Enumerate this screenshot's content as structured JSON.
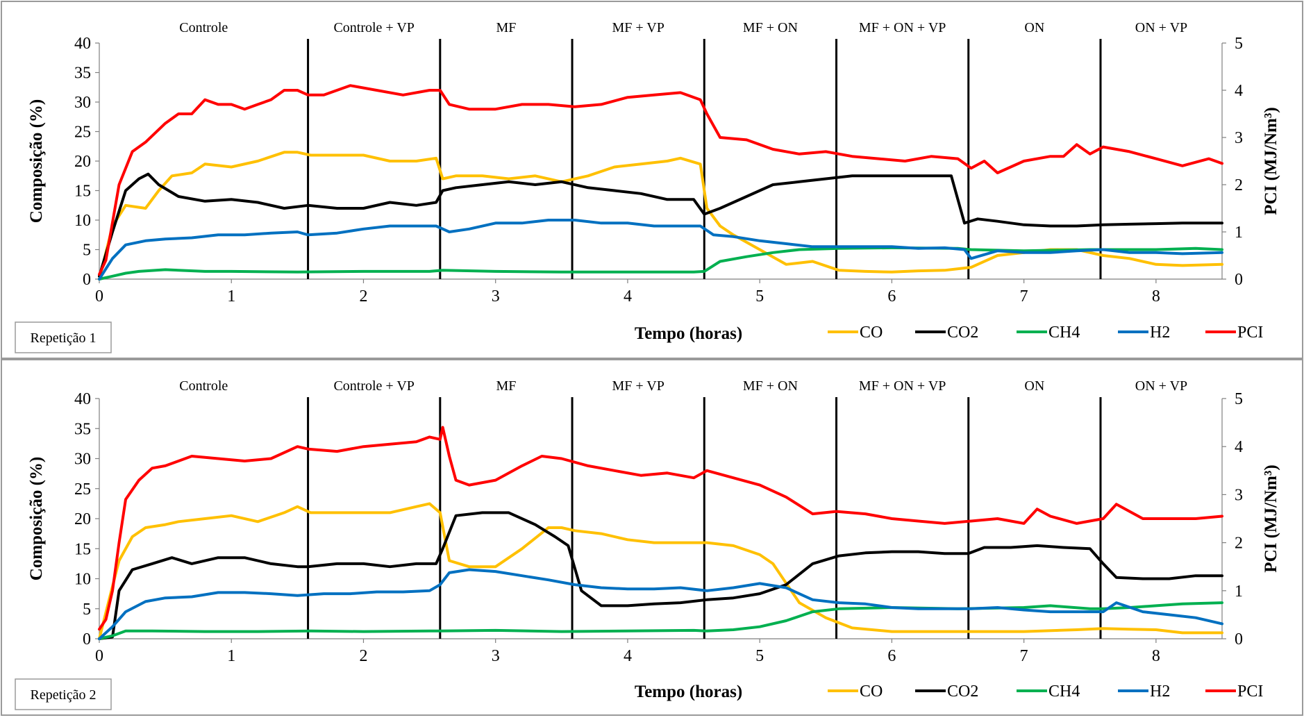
{
  "chart_data": [
    {
      "type": "line",
      "panel_label": "Repetição 1",
      "xlabel": "Tempo (horas)",
      "ylabel": "Composição (%)",
      "y2label": "PCI (MJ/Nm³)",
      "xlim": [
        0,
        8.5
      ],
      "ylim": [
        0,
        40
      ],
      "y2lim": [
        0,
        5
      ],
      "x_ticks": [
        0,
        1,
        2,
        3,
        4,
        5,
        6,
        7,
        8
      ],
      "y_ticks": [
        0,
        5,
        10,
        15,
        20,
        25,
        30,
        35,
        40
      ],
      "y2_ticks": [
        0,
        1,
        2,
        3,
        4,
        5
      ],
      "grid": false,
      "legend_position": "bottom-right",
      "phase_boundaries": [
        1.58,
        2.58,
        3.58,
        4.58,
        5.58,
        6.58,
        7.58
      ],
      "phases": [
        "Controle",
        "Controle + VP",
        "MF",
        "MF + VP",
        "MF + ON",
        "MF + ON + VP",
        "ON",
        "ON + VP"
      ],
      "series": [
        {
          "name": "CO",
          "axis": "left",
          "color": "#FFC000",
          "x": [
            0,
            0.1,
            0.2,
            0.35,
            0.45,
            0.55,
            0.7,
            0.8,
            1.0,
            1.2,
            1.4,
            1.5,
            1.6,
            1.8,
            2.0,
            2.2,
            2.4,
            2.55,
            2.6,
            2.7,
            2.9,
            3.1,
            3.3,
            3.5,
            3.7,
            3.9,
            4.1,
            4.3,
            4.4,
            4.55,
            4.6,
            4.7,
            4.8,
            5.0,
            5.2,
            5.4,
            5.6,
            5.8,
            6.0,
            6.2,
            6.4,
            6.6,
            6.8,
            7.0,
            7.2,
            7.4,
            7.6,
            7.8,
            8.0,
            8.2,
            8.5
          ],
          "values": [
            0,
            9,
            12.5,
            12,
            15,
            17.5,
            18,
            19.5,
            19,
            20,
            21.5,
            21.5,
            21,
            21,
            21,
            20,
            20,
            20.5,
            17,
            17.5,
            17.5,
            17,
            17.5,
            16.5,
            17.5,
            19,
            19.5,
            20,
            20.5,
            19.5,
            12,
            9,
            7.5,
            5,
            2.5,
            3,
            1.5,
            1.3,
            1.2,
            1.4,
            1.5,
            2,
            4,
            4.5,
            5,
            5,
            4,
            3.5,
            2.5,
            2.3,
            2.5
          ]
        },
        {
          "name": "CO2",
          "axis": "left",
          "color": "#000000",
          "x": [
            0,
            0.1,
            0.2,
            0.3,
            0.37,
            0.45,
            0.6,
            0.8,
            1.0,
            1.2,
            1.4,
            1.58,
            1.8,
            2.0,
            2.2,
            2.4,
            2.55,
            2.6,
            2.7,
            2.9,
            3.1,
            3.3,
            3.5,
            3.7,
            3.9,
            4.1,
            4.3,
            4.5,
            4.58,
            4.7,
            4.9,
            5.1,
            5.3,
            5.5,
            5.7,
            5.9,
            6.1,
            6.3,
            6.45,
            6.55,
            6.65,
            6.8,
            7.0,
            7.2,
            7.4,
            7.6,
            7.8,
            8.0,
            8.2,
            8.5
          ],
          "values": [
            0.5,
            8,
            15,
            17,
            17.8,
            16,
            14,
            13.2,
            13.5,
            13,
            12,
            12.5,
            12,
            12,
            13,
            12.5,
            13,
            15,
            15.5,
            16,
            16.5,
            16,
            16.5,
            15.5,
            15,
            14.5,
            13.5,
            13.5,
            11,
            12,
            14,
            16,
            16.5,
            17,
            17.5,
            17.5,
            17.5,
            17.5,
            17.5,
            9.5,
            10.2,
            9.8,
            9.2,
            9,
            9,
            9.2,
            9.3,
            9.4,
            9.5,
            9.5
          ]
        },
        {
          "name": "CH4",
          "axis": "left",
          "color": "#00B050",
          "x": [
            0,
            0.1,
            0.2,
            0.3,
            0.5,
            0.8,
            1.0,
            1.5,
            2.0,
            2.5,
            2.6,
            3.0,
            3.5,
            4.0,
            4.5,
            4.58,
            4.7,
            4.9,
            5.1,
            5.3,
            5.6,
            6.0,
            6.5,
            6.6,
            7.0,
            7.5,
            8.0,
            8.3,
            8.5
          ],
          "values": [
            0,
            0.5,
            1.0,
            1.3,
            1.6,
            1.3,
            1.3,
            1.2,
            1.3,
            1.3,
            1.5,
            1.3,
            1.2,
            1.2,
            1.2,
            1.3,
            3.0,
            3.8,
            4.5,
            5.0,
            5.2,
            5.3,
            5.2,
            5.0,
            4.8,
            5.0,
            5.0,
            5.2,
            5.0
          ]
        },
        {
          "name": "H2",
          "axis": "left",
          "color": "#0070C0",
          "x": [
            0,
            0.1,
            0.2,
            0.35,
            0.5,
            0.7,
            0.9,
            1.1,
            1.3,
            1.5,
            1.58,
            1.8,
            2.0,
            2.2,
            2.4,
            2.55,
            2.65,
            2.8,
            3.0,
            3.2,
            3.4,
            3.6,
            3.8,
            4.0,
            4.2,
            4.4,
            4.55,
            4.65,
            4.8,
            5.0,
            5.2,
            5.4,
            5.6,
            5.8,
            6.0,
            6.2,
            6.4,
            6.55,
            6.6,
            6.8,
            7.0,
            7.2,
            7.4,
            7.6,
            7.8,
            8.0,
            8.2,
            8.5
          ],
          "values": [
            0,
            3.5,
            5.8,
            6.5,
            6.8,
            7,
            7.5,
            7.5,
            7.8,
            8,
            7.5,
            7.8,
            8.5,
            9,
            9,
            9,
            8,
            8.5,
            9.5,
            9.5,
            10,
            10,
            9.5,
            9.5,
            9,
            9,
            9,
            7.5,
            7.2,
            6.5,
            6,
            5.5,
            5.5,
            5.5,
            5.5,
            5.2,
            5.3,
            5,
            3.5,
            4.8,
            4.5,
            4.5,
            4.8,
            5,
            4.5,
            4.5,
            4.3,
            4.5
          ]
        },
        {
          "name": "PCI",
          "axis": "right",
          "color": "#FF0000",
          "x": [
            0,
            0.05,
            0.15,
            0.25,
            0.35,
            0.5,
            0.6,
            0.7,
            0.8,
            0.9,
            1.0,
            1.1,
            1.2,
            1.3,
            1.4,
            1.5,
            1.58,
            1.7,
            1.9,
            2.1,
            2.3,
            2.5,
            2.58,
            2.65,
            2.8,
            3.0,
            3.2,
            3.4,
            3.6,
            3.8,
            4.0,
            4.2,
            4.4,
            4.55,
            4.6,
            4.7,
            4.9,
            5.1,
            5.3,
            5.5,
            5.7,
            5.9,
            6.1,
            6.3,
            6.5,
            6.6,
            6.7,
            6.8,
            7.0,
            7.2,
            7.3,
            7.4,
            7.5,
            7.6,
            7.8,
            8.0,
            8.2,
            8.4,
            8.5
          ],
          "values": [
            0.1,
            0.4,
            2.0,
            2.7,
            2.9,
            3.3,
            3.5,
            3.5,
            3.8,
            3.7,
            3.7,
            3.6,
            3.7,
            3.8,
            4.0,
            4.0,
            3.9,
            3.9,
            4.1,
            4.0,
            3.9,
            4.0,
            4.0,
            3.7,
            3.6,
            3.6,
            3.7,
            3.7,
            3.65,
            3.7,
            3.85,
            3.9,
            3.95,
            3.8,
            3.5,
            3.0,
            2.95,
            2.75,
            2.65,
            2.7,
            2.6,
            2.55,
            2.5,
            2.6,
            2.55,
            2.35,
            2.5,
            2.25,
            2.5,
            2.6,
            2.6,
            2.85,
            2.65,
            2.8,
            2.7,
            2.55,
            2.4,
            2.55,
            2.45
          ]
        }
      ]
    },
    {
      "type": "line",
      "panel_label": "Repetição 2",
      "xlabel": "Tempo (horas)",
      "ylabel": "Composição (%)",
      "y2label": "PCI (MJ/Nm³)",
      "xlim": [
        0,
        8.5
      ],
      "ylim": [
        0,
        40
      ],
      "y2lim": [
        0,
        5
      ],
      "x_ticks": [
        0,
        1,
        2,
        3,
        4,
        5,
        6,
        7,
        8
      ],
      "y_ticks": [
        0,
        5,
        10,
        15,
        20,
        25,
        30,
        35,
        40
      ],
      "y2_ticks": [
        0,
        1,
        2,
        3,
        4,
        5
      ],
      "grid": false,
      "legend_position": "bottom-right",
      "phase_boundaries": [
        1.58,
        2.58,
        3.58,
        4.58,
        5.58,
        6.58,
        7.58
      ],
      "phases": [
        "Controle",
        "Controle + VP",
        "MF",
        "MF + VP",
        "MF + ON",
        "MF + ON + VP",
        "ON",
        "ON + VP"
      ],
      "series": [
        {
          "name": "CO",
          "axis": "left",
          "color": "#FFC000",
          "x": [
            0,
            0.08,
            0.15,
            0.25,
            0.35,
            0.5,
            0.6,
            0.8,
            1.0,
            1.2,
            1.4,
            1.5,
            1.6,
            1.8,
            2.0,
            2.2,
            2.4,
            2.5,
            2.58,
            2.65,
            2.8,
            3.0,
            3.2,
            3.4,
            3.5,
            3.6,
            3.8,
            4.0,
            4.2,
            4.4,
            4.6,
            4.8,
            5.0,
            5.1,
            5.3,
            5.5,
            5.7,
            6.0,
            6.3,
            6.6,
            7.0,
            7.4,
            7.6,
            7.8,
            8.0,
            8.2,
            8.5
          ],
          "values": [
            0,
            7,
            13,
            17,
            18.5,
            19,
            19.5,
            20,
            20.5,
            19.5,
            21,
            22,
            21,
            21,
            21,
            21,
            22,
            22.5,
            21,
            13,
            12,
            12,
            15,
            18.5,
            18.5,
            18,
            17.5,
            16.5,
            16,
            16,
            16,
            15.5,
            14,
            12.5,
            6,
            3.5,
            1.8,
            1.2,
            1.2,
            1.2,
            1.2,
            1.5,
            1.7,
            1.6,
            1.5,
            1.0,
            1.0
          ]
        },
        {
          "name": "CO2",
          "axis": "left",
          "color": "#000000",
          "x": [
            0,
            0.1,
            0.15,
            0.25,
            0.4,
            0.55,
            0.7,
            0.9,
            1.1,
            1.3,
            1.5,
            1.58,
            1.8,
            2.0,
            2.2,
            2.4,
            2.55,
            2.6,
            2.7,
            2.9,
            3.1,
            3.3,
            3.45,
            3.55,
            3.65,
            3.8,
            4.0,
            4.2,
            4.4,
            4.6,
            4.8,
            5.0,
            5.2,
            5.4,
            5.6,
            5.8,
            6.0,
            6.2,
            6.4,
            6.58,
            6.7,
            6.9,
            7.1,
            7.3,
            7.5,
            7.6,
            7.7,
            7.9,
            8.1,
            8.3,
            8.5
          ],
          "values": [
            0,
            0.3,
            8,
            11.5,
            12.5,
            13.5,
            12.5,
            13.5,
            13.5,
            12.5,
            12,
            12,
            12.5,
            12.5,
            12,
            12.5,
            12.5,
            15,
            20.5,
            21,
            21,
            19,
            17,
            15.5,
            8,
            5.5,
            5.5,
            5.8,
            6,
            6.5,
            6.8,
            7.5,
            9,
            12.5,
            13.8,
            14.3,
            14.5,
            14.5,
            14.2,
            14.2,
            15.2,
            15.2,
            15.5,
            15.2,
            15,
            12.5,
            10.2,
            10,
            10,
            10.5,
            10.5
          ]
        },
        {
          "name": "CH4",
          "axis": "left",
          "color": "#00B050",
          "x": [
            0,
            0.1,
            0.2,
            0.4,
            0.8,
            1.2,
            1.6,
            2.0,
            2.5,
            2.58,
            3.0,
            3.5,
            4.0,
            4.5,
            4.6,
            4.8,
            5.0,
            5.2,
            5.4,
            5.6,
            6.0,
            6.5,
            7.0,
            7.2,
            7.5,
            7.6,
            7.8,
            8.0,
            8.2,
            8.5
          ],
          "values": [
            0,
            0.5,
            1.3,
            1.3,
            1.2,
            1.2,
            1.3,
            1.2,
            1.3,
            1.3,
            1.4,
            1.2,
            1.3,
            1.4,
            1.3,
            1.5,
            2.0,
            3.0,
            4.5,
            5.0,
            5.2,
            5.0,
            5.2,
            5.5,
            5.0,
            5.0,
            5.2,
            5.5,
            5.8,
            6.0
          ]
        },
        {
          "name": "H2",
          "axis": "left",
          "color": "#0070C0",
          "x": [
            0,
            0.1,
            0.2,
            0.35,
            0.5,
            0.7,
            0.9,
            1.1,
            1.3,
            1.5,
            1.7,
            1.9,
            2.1,
            2.3,
            2.5,
            2.58,
            2.65,
            2.8,
            3.0,
            3.2,
            3.4,
            3.6,
            3.8,
            4.0,
            4.2,
            4.4,
            4.6,
            4.8,
            5.0,
            5.2,
            5.4,
            5.6,
            5.8,
            6.0,
            6.2,
            6.4,
            6.6,
            6.8,
            7.0,
            7.2,
            7.4,
            7.6,
            7.7,
            7.9,
            8.1,
            8.3,
            8.5
          ],
          "values": [
            0,
            2,
            4.5,
            6.2,
            6.8,
            7,
            7.7,
            7.7,
            7.5,
            7.2,
            7.5,
            7.5,
            7.8,
            7.8,
            8,
            9,
            11,
            11.5,
            11.2,
            10.5,
            9.8,
            9,
            8.5,
            8.3,
            8.3,
            8.5,
            8,
            8.5,
            9.2,
            8.5,
            6.5,
            6,
            5.8,
            5.2,
            5,
            5,
            5,
            5.2,
            4.8,
            4.5,
            4.5,
            4.5,
            6,
            4.5,
            4,
            3.5,
            2.5
          ]
        },
        {
          "name": "PCI",
          "axis": "right",
          "color": "#FF0000",
          "x": [
            0,
            0.05,
            0.1,
            0.15,
            0.2,
            0.3,
            0.4,
            0.5,
            0.7,
            0.9,
            1.1,
            1.3,
            1.5,
            1.58,
            1.8,
            2.0,
            2.2,
            2.4,
            2.5,
            2.58,
            2.6,
            2.65,
            2.7,
            2.8,
            3.0,
            3.2,
            3.35,
            3.5,
            3.7,
            3.9,
            4.1,
            4.3,
            4.5,
            4.6,
            4.8,
            5.0,
            5.2,
            5.4,
            5.58,
            5.8,
            6.0,
            6.2,
            6.4,
            6.6,
            6.8,
            7.0,
            7.1,
            7.2,
            7.4,
            7.6,
            7.7,
            7.9,
            8.1,
            8.3,
            8.5
          ],
          "values": [
            0.2,
            0.4,
            1.0,
            2.0,
            2.9,
            3.3,
            3.55,
            3.6,
            3.8,
            3.75,
            3.7,
            3.75,
            4.0,
            3.95,
            3.9,
            4.0,
            4.05,
            4.1,
            4.2,
            4.15,
            4.4,
            3.8,
            3.3,
            3.2,
            3.3,
            3.6,
            3.8,
            3.75,
            3.6,
            3.5,
            3.4,
            3.45,
            3.35,
            3.5,
            3.35,
            3.2,
            2.95,
            2.6,
            2.65,
            2.6,
            2.5,
            2.45,
            2.4,
            2.45,
            2.5,
            2.4,
            2.7,
            2.55,
            2.4,
            2.5,
            2.8,
            2.5,
            2.5,
            2.5,
            2.55
          ]
        }
      ]
    }
  ]
}
